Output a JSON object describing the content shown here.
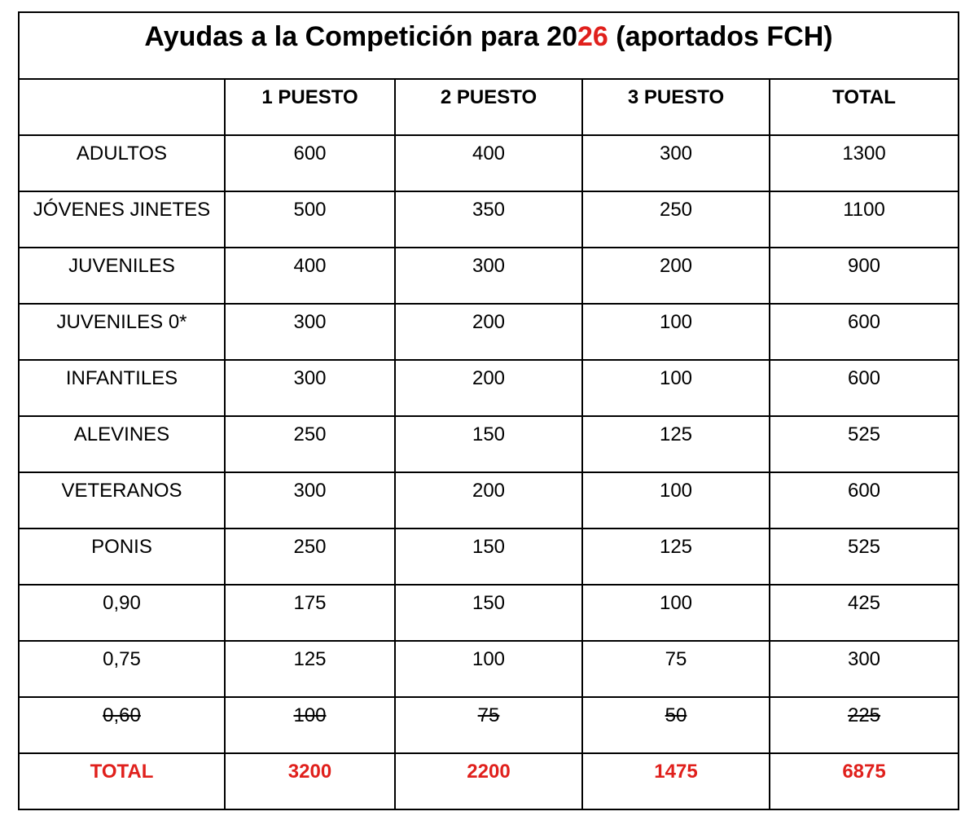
{
  "title": {
    "parts": [
      "Ayudas a la Competición para 20",
      "26",
      " (aportados FCH)"
    ]
  },
  "table": {
    "header": [
      "1 PUESTO",
      "2 PUESTO",
      "3 PUESTO",
      "TOTAL"
    ],
    "rows": [
      [
        "ADULTOS",
        600,
        400,
        300,
        1300
      ],
      [
        "JÓVENES JINETES",
        500,
        350,
        250,
        1100
      ],
      [
        "JUVENILES",
        400,
        300,
        200,
        900
      ],
      [
        "JUVENILES 0*",
        300,
        200,
        100,
        600
      ],
      [
        "INFANTILES",
        300,
        200,
        100,
        600
      ],
      [
        "ALEVINES",
        250,
        150,
        125,
        525
      ],
      [
        "VETERANOS",
        300,
        200,
        100,
        600
      ],
      [
        "PONIS",
        250,
        150,
        125,
        525
      ],
      [
        "0,90",
        175,
        150,
        100,
        425
      ],
      [
        "0,75",
        125,
        100,
        75,
        300
      ]
    ],
    "struck_rows": [
      [
        "0,60",
        100,
        75,
        50,
        225
      ]
    ],
    "total_row": [
      "TOTAL",
      3200,
      2200,
      1475,
      6875
    ]
  }
}
